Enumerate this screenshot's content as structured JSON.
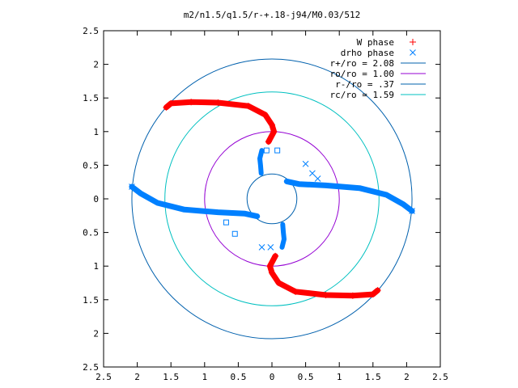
{
  "chart_data": {
    "type": "scatter",
    "title": "m2/n1.5/q1.5/r-+.18-j94/M0.03/512",
    "xlim": [
      -2.5,
      2.5
    ],
    "ylim": [
      -2.5,
      2.5
    ],
    "x_ticks": [
      "2.5",
      "2",
      "1.5",
      "1",
      "0.5",
      "0",
      "0.5",
      "1",
      "1.5",
      "2",
      "2.5"
    ],
    "y_ticks": [
      "2.5",
      "2",
      "1.5",
      "1",
      "0.5",
      "0",
      "0.5",
      "1",
      "1.5",
      "2",
      "2.5"
    ],
    "grid": false,
    "legend_position": "top-right",
    "series": [
      {
        "name": "W phase",
        "marker": "plus",
        "color": "#ff0000",
        "points": [
          [
            -1.57,
            1.36
          ],
          [
            -1.5,
            1.42
          ],
          [
            -1.2,
            1.44
          ],
          [
            -0.8,
            1.43
          ],
          [
            -0.35,
            1.38
          ],
          [
            -0.1,
            1.25
          ],
          [
            0.0,
            1.1
          ],
          [
            0.03,
            1.0
          ],
          [
            -0.05,
            0.85
          ],
          [
            1.57,
            -1.36
          ],
          [
            1.5,
            -1.42
          ],
          [
            1.2,
            -1.44
          ],
          [
            0.8,
            -1.43
          ],
          [
            0.35,
            -1.38
          ],
          [
            0.1,
            -1.25
          ],
          [
            0.0,
            -1.1
          ],
          [
            -0.03,
            -1.0
          ],
          [
            0.05,
            -0.85
          ]
        ]
      },
      {
        "name": "drho phase",
        "marker": "cross",
        "color": "#0080ff",
        "points": [
          [
            -2.08,
            0.18
          ],
          [
            -1.95,
            0.08
          ],
          [
            -1.7,
            -0.06
          ],
          [
            -1.3,
            -0.16
          ],
          [
            -0.8,
            -0.2
          ],
          [
            -0.4,
            -0.22
          ],
          [
            -0.22,
            -0.26
          ],
          [
            2.08,
            -0.18
          ],
          [
            1.95,
            -0.08
          ],
          [
            1.7,
            0.06
          ],
          [
            1.3,
            0.16
          ],
          [
            0.8,
            0.2
          ],
          [
            0.4,
            0.22
          ],
          [
            0.22,
            0.26
          ],
          [
            -0.15,
            0.72
          ],
          [
            -0.18,
            0.6
          ],
          [
            -0.17,
            0.5
          ],
          [
            -0.16,
            0.38
          ],
          [
            0.15,
            -0.72
          ],
          [
            0.18,
            -0.6
          ],
          [
            0.17,
            -0.5
          ],
          [
            0.16,
            -0.38
          ],
          [
            0.5,
            0.52
          ],
          [
            0.6,
            0.38
          ],
          [
            0.68,
            0.3
          ],
          [
            -0.15,
            -0.72
          ],
          [
            -0.02,
            -0.72
          ]
        ]
      },
      {
        "name": "",
        "marker": "square",
        "color": "#0080ff",
        "points": [
          [
            0.08,
            0.72
          ],
          [
            -0.08,
            0.72
          ],
          [
            -0.68,
            -0.35
          ],
          [
            -0.55,
            -0.52
          ]
        ]
      },
      {
        "name": "r+/ro = 2.08",
        "type": "circle",
        "radius": 2.08,
        "color": "#0060ad"
      },
      {
        "name": "ro/ro = 1.00",
        "type": "circle",
        "radius": 1.0,
        "color": "#9400d3"
      },
      {
        "name": "r-/ro = .37",
        "type": "circle",
        "radius": 0.37,
        "color": "#0060ad"
      },
      {
        "name": "rc/ro = 1.59",
        "type": "circle",
        "radius": 1.59,
        "color": "#00c0c0"
      }
    ]
  }
}
